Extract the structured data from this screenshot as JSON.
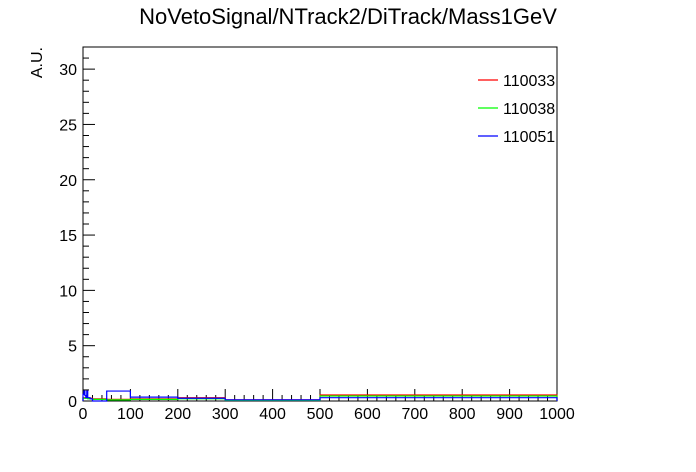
{
  "chart_data": {
    "type": "histogram",
    "title": "NoVetoSignal/NTrack2/DiTrack/Mass1GeV",
    "xlabel": "",
    "ylabel": "A.U.",
    "xlim": [
      0,
      1000
    ],
    "ylim": [
      0,
      32
    ],
    "x_ticks": [
      0,
      100,
      200,
      300,
      400,
      500,
      600,
      700,
      800,
      900,
      1000
    ],
    "y_ticks": [
      0,
      5,
      10,
      15,
      20,
      25,
      30
    ],
    "grid": false,
    "legend_position": "top-right",
    "series": [
      {
        "name": "110033",
        "color": "#ff0000",
        "bins": [
          {
            "x0": 0,
            "x1": 10,
            "y": 0.3
          },
          {
            "x0": 10,
            "x1": 20,
            "y": 0.25
          },
          {
            "x0": 20,
            "x1": 50,
            "y": 0.2
          },
          {
            "x0": 50,
            "x1": 100,
            "y": 0.15
          },
          {
            "x0": 100,
            "x1": 200,
            "y": 0.2
          },
          {
            "x0": 200,
            "x1": 300,
            "y": 0.3
          },
          {
            "x0": 300,
            "x1": 500,
            "y": 0.1
          },
          {
            "x0": 500,
            "x1": 1000,
            "y": 0.55
          }
        ]
      },
      {
        "name": "110038",
        "color": "#00ff00",
        "bins": [
          {
            "x0": 0,
            "x1": 10,
            "y": 0.25
          },
          {
            "x0": 10,
            "x1": 20,
            "y": 0.2
          },
          {
            "x0": 20,
            "x1": 50,
            "y": 0.15
          },
          {
            "x0": 50,
            "x1": 100,
            "y": 0.1
          },
          {
            "x0": 100,
            "x1": 200,
            "y": 0.15
          },
          {
            "x0": 200,
            "x1": 300,
            "y": 0.2
          },
          {
            "x0": 300,
            "x1": 500,
            "y": 0.05
          },
          {
            "x0": 500,
            "x1": 1000,
            "y": 0.45
          }
        ]
      },
      {
        "name": "110051",
        "color": "#0000ff",
        "bins": [
          {
            "x0": 0,
            "x1": 2,
            "y": 0.6
          },
          {
            "x0": 2,
            "x1": 4,
            "y": 0.9
          },
          {
            "x0": 4,
            "x1": 6,
            "y": 0.5
          },
          {
            "x0": 6,
            "x1": 8,
            "y": 0.3
          },
          {
            "x0": 8,
            "x1": 10,
            "y": 0.9
          },
          {
            "x0": 10,
            "x1": 15,
            "y": 0.3
          },
          {
            "x0": 15,
            "x1": 20,
            "y": 0.2
          },
          {
            "x0": 20,
            "x1": 50,
            "y": 0.0
          },
          {
            "x0": 50,
            "x1": 100,
            "y": 0.9
          },
          {
            "x0": 100,
            "x1": 200,
            "y": 0.35
          },
          {
            "x0": 200,
            "x1": 300,
            "y": 0.25
          },
          {
            "x0": 300,
            "x1": 500,
            "y": 0.1
          },
          {
            "x0": 500,
            "x1": 1000,
            "y": 0.3
          }
        ]
      }
    ]
  }
}
